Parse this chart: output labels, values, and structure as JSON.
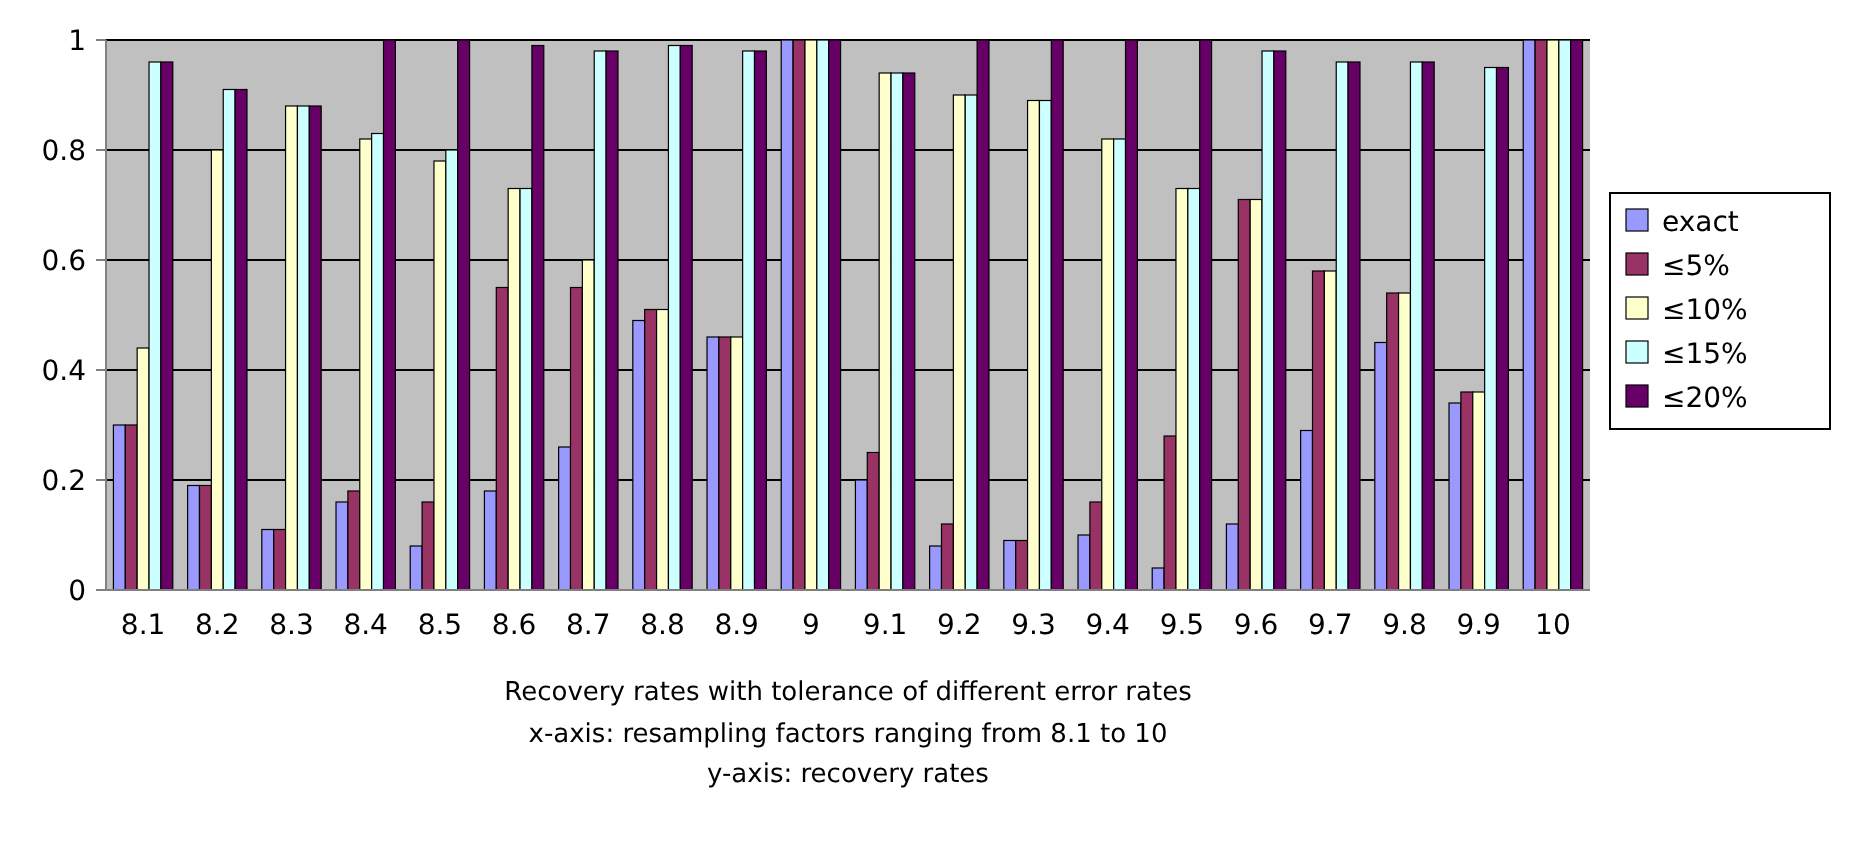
{
  "chart_data": {
    "type": "bar",
    "title": "Recovery rates with tolerance of different error rates",
    "annotations": [
      "x-axis: resampling factors ranging from 8.1 to 10",
      "y-axis: recovery rates"
    ],
    "categories": [
      "8.1",
      "8.2",
      "8.3",
      "8.4",
      "8.5",
      "8.6",
      "8.7",
      "8.8",
      "8.9",
      "9",
      "9.1",
      "9.2",
      "9.3",
      "9.4",
      "9.5",
      "9.6",
      "9.7",
      "9.8",
      "9.9",
      "10"
    ],
    "series": [
      {
        "name": "exact",
        "color": "#9999ff",
        "values": [
          0.3,
          0.19,
          0.11,
          0.16,
          0.08,
          0.18,
          0.26,
          0.49,
          0.46,
          1,
          0.2,
          0.08,
          0.09,
          0.1,
          0.04,
          0.12,
          0.29,
          0.45,
          0.34,
          1
        ]
      },
      {
        "name": "≤5%",
        "color": "#993366",
        "values": [
          0.3,
          0.19,
          0.11,
          0.18,
          0.16,
          0.55,
          0.55,
          0.51,
          0.46,
          1,
          0.25,
          0.12,
          0.09,
          0.16,
          0.28,
          0.71,
          0.58,
          0.54,
          0.36,
          1
        ]
      },
      {
        "name": "≤10%",
        "color": "#ffffcc",
        "values": [
          0.44,
          0.8,
          0.88,
          0.82,
          0.78,
          0.73,
          0.6,
          0.51,
          0.46,
          1,
          0.94,
          0.9,
          0.89,
          0.82,
          0.73,
          0.71,
          0.58,
          0.54,
          0.36,
          1
        ]
      },
      {
        "name": "≤15%",
        "color": "#ccffff",
        "values": [
          0.96,
          0.91,
          0.88,
          0.83,
          0.8,
          0.73,
          0.98,
          0.99,
          0.98,
          1,
          0.94,
          0.9,
          0.89,
          0.82,
          0.73,
          0.98,
          0.96,
          0.96,
          0.95,
          1
        ]
      },
      {
        "name": "≤20%",
        "color": "#660066",
        "values": [
          0.96,
          0.91,
          0.88,
          1,
          1,
          0.99,
          0.98,
          0.99,
          0.98,
          1,
          0.94,
          1,
          1,
          1,
          1,
          0.98,
          0.96,
          0.96,
          0.95,
          1
        ]
      }
    ],
    "ylim": [
      0,
      1
    ],
    "yticks": [
      0,
      0.2,
      0.4,
      0.6,
      0.8,
      1
    ],
    "grid": "y",
    "legend": "right"
  }
}
